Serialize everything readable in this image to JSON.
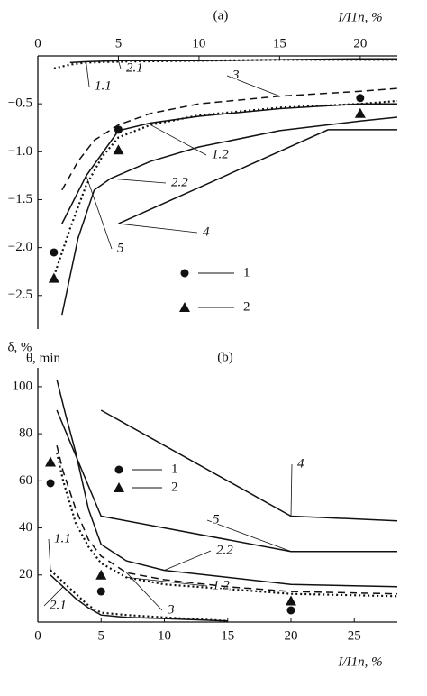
{
  "chart_data": [
    {
      "type": "line",
      "panel_label": "(a)",
      "x_label": "I/I1n, %",
      "y_label": "δ, %",
      "xaxis_position": "top",
      "xlim": [
        0,
        22.3
      ],
      "xticks": [
        0,
        5,
        10,
        15,
        20
      ],
      "ylim": [
        -2.85,
        0
      ],
      "yticks": [
        {
          "value": -0.5,
          "label": "−0.5"
        },
        {
          "value": -1,
          "label": "−1.0"
        },
        {
          "value": -1.5,
          "label": "−1.5"
        },
        {
          "value": -2,
          "label": "−2.0"
        },
        {
          "value": -2.5,
          "label": "−2.5"
        }
      ],
      "series": [
        {
          "name": "1.1",
          "color": "#111",
          "style": "dotted",
          "x": [
            1,
            2,
            3,
            5,
            10,
            15,
            20,
            22.3
          ],
          "values": [
            -0.13,
            -0.09,
            -0.07,
            -0.06,
            -0.05,
            -0.04,
            -0.04,
            -0.04
          ]
        },
        {
          "name": "2.1",
          "color": "#111",
          "style": "solid",
          "x": [
            2,
            3,
            5,
            10,
            15,
            20,
            22.3
          ],
          "values": [
            -0.07,
            -0.06,
            -0.05,
            -0.05,
            -0.04,
            -0.03,
            -0.03
          ]
        },
        {
          "name": "3",
          "color": "#111",
          "style": "dashed",
          "x": [
            1.5,
            2.5,
            3.5,
            5,
            7,
            10,
            15,
            20,
            22.3
          ],
          "values": [
            -1.4,
            -1.1,
            -0.88,
            -0.72,
            -0.6,
            -0.5,
            -0.42,
            -0.37,
            -0.34
          ]
        },
        {
          "name": "1.2",
          "color": "#111",
          "style": "dotted",
          "x": [
            1,
            2,
            3,
            4,
            5,
            7,
            10,
            15,
            20,
            22.3
          ],
          "values": [
            -2.3,
            -1.8,
            -1.35,
            -1.05,
            -0.85,
            -0.72,
            -0.62,
            -0.54,
            -0.5,
            -0.47
          ]
        },
        {
          "name": "2.2",
          "color": "#111",
          "style": "solid",
          "x": [
            1.5,
            2.5,
            3.5,
            4.5,
            7,
            10,
            15,
            20,
            22.3
          ],
          "values": [
            -2.7,
            -1.9,
            -1.4,
            -1.28,
            -1.1,
            -0.95,
            -0.78,
            -0.68,
            -0.64
          ]
        },
        {
          "name": "5",
          "color": "#111",
          "style": "solid",
          "x": [
            1.5,
            3,
            5,
            7,
            10,
            15,
            20,
            22.3
          ],
          "values": [
            -1.75,
            -1.25,
            -0.78,
            -0.7,
            -0.63,
            -0.55,
            -0.5,
            -0.5
          ]
        },
        {
          "name": "4",
          "color": "#111",
          "style": "solid",
          "x": [
            5,
            18,
            22.3
          ],
          "values": [
            -1.75,
            -0.77,
            -0.77
          ]
        },
        {
          "name": "1",
          "color": "#111",
          "marker": "circle",
          "x": [
            1,
            5,
            20
          ],
          "values": [
            -2.05,
            -0.77,
            -0.44
          ]
        },
        {
          "name": "2",
          "color": "#111",
          "marker": "triangle",
          "x": [
            1,
            5,
            20
          ],
          "values": [
            -2.32,
            -0.98,
            -0.6
          ]
        }
      ]
    },
    {
      "type": "line",
      "panel_label": "(b)",
      "x_label": "I/I1n, %",
      "y_label": "θ, min",
      "xaxis_position": "bottom",
      "xlim": [
        0,
        28.4
      ],
      "xticks": [
        0,
        5,
        10,
        15,
        20,
        25
      ],
      "ylim": [
        0,
        108
      ],
      "yticks": [
        20,
        40,
        60,
        80,
        100
      ],
      "series": [
        {
          "name": "4",
          "color": "#111",
          "style": "solid",
          "x": [
            5,
            20,
            28.4
          ],
          "values": [
            90,
            45,
            43
          ]
        },
        {
          "name": "5",
          "color": "#111",
          "style": "solid",
          "x": [
            1.5,
            5,
            20,
            28.4
          ],
          "values": [
            90,
            45,
            30,
            30
          ]
        },
        {
          "name": "2.2",
          "color": "#111",
          "style": "solid",
          "x": [
            1.5,
            2.2,
            3,
            4,
            5,
            7,
            10,
            15,
            20,
            28.4
          ],
          "values": [
            103,
            88,
            72,
            48,
            33,
            26,
            22,
            19,
            16,
            15
          ]
        },
        {
          "name": "1.2",
          "color": "#111",
          "style": "dotted",
          "x": [
            1.5,
            2,
            3,
            4,
            5,
            7,
            10,
            15,
            20,
            28.4
          ],
          "values": [
            72,
            60,
            42,
            32,
            25,
            19,
            16,
            14,
            12,
            11
          ]
        },
        {
          "name": "3",
          "color": "#111",
          "style": "dashed",
          "x": [
            1.5,
            2,
            3,
            4,
            5,
            7,
            10,
            15,
            20,
            28.4
          ],
          "values": [
            75,
            64,
            48,
            35,
            28,
            21,
            18,
            15,
            13,
            12
          ]
        },
        {
          "name": "1.1",
          "color": "#111",
          "style": "dotted",
          "x": [
            1,
            2,
            3,
            4,
            5,
            7,
            10,
            15
          ],
          "values": [
            22,
            17,
            12,
            7,
            4,
            3,
            2,
            0.5
          ]
        },
        {
          "name": "2.1",
          "color": "#111",
          "style": "solid",
          "x": [
            1,
            2,
            3,
            4,
            5,
            7,
            10,
            15
          ],
          "values": [
            20,
            15,
            10,
            6,
            3,
            2,
            1.5,
            0.5
          ]
        },
        {
          "name": "1",
          "color": "#111",
          "marker": "circle",
          "x": [
            1,
            5,
            20
          ],
          "values": [
            59,
            13,
            5
          ]
        },
        {
          "name": "2",
          "color": "#111",
          "marker": "triangle",
          "x": [
            1,
            5,
            20
          ],
          "values": [
            68,
            20,
            9
          ]
        }
      ]
    }
  ]
}
